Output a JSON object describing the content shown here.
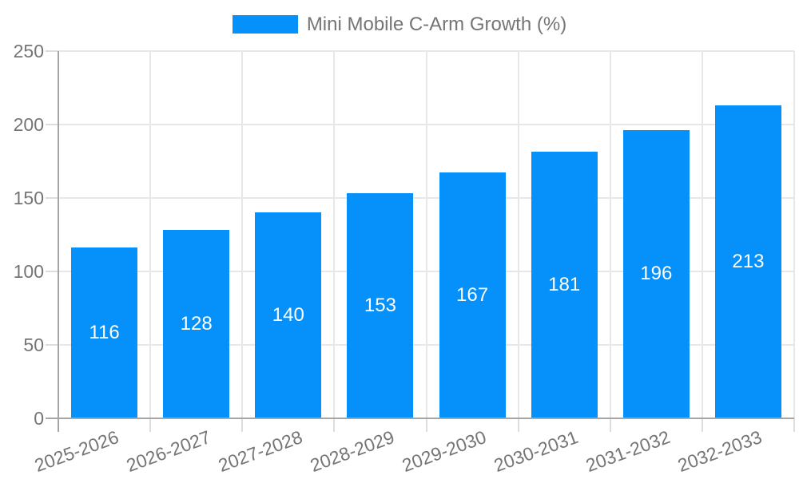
{
  "legend": {
    "label": "Mini Mobile C-Arm Growth (%)"
  },
  "chart_data": {
    "type": "bar",
    "title": "Mini Mobile C-Arm Growth (%)",
    "categories": [
      "2025-2026",
      "2026-2027",
      "2027-2028",
      "2028-2029",
      "2029-2030",
      "2030-2031",
      "2031-2032",
      "2032-2033"
    ],
    "series": [
      {
        "name": "Mini Mobile C-Arm Growth (%)",
        "values": [
          116,
          128,
          140,
          153,
          167,
          181,
          196,
          213
        ]
      }
    ],
    "xlabel": "",
    "ylabel": "",
    "ylim": [
      0,
      250
    ],
    "yticks": [
      0,
      50,
      100,
      150,
      200,
      250
    ],
    "grid": true,
    "legend_position": "top",
    "x_tick_rotation_deg": -20,
    "value_labels": "inside-center",
    "colors": {
      "bar": "#0590fa",
      "grid": "#e7e7e7",
      "axis": "#a6a6a6",
      "tick": "#dddddd",
      "tick_text": "#757575",
      "value_label": "#ffffff",
      "background": "#ffffff"
    }
  }
}
